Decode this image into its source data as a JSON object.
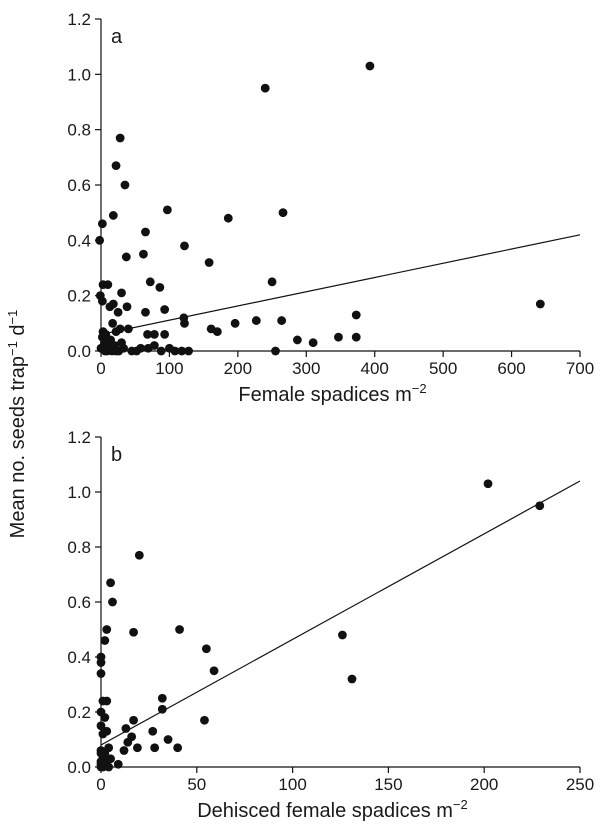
{
  "ylabel_shared": {
    "main": "Mean no. seeds trap",
    "sup1": "−1",
    "mid": " d",
    "sup2": "−1"
  },
  "chart_data": [
    {
      "type": "scatter",
      "panel_label": "a",
      "xlabel": {
        "main": "Female spadices m",
        "sup": "−2"
      },
      "xlim": [
        0,
        700
      ],
      "ylim": [
        0,
        1.2
      ],
      "x_ticks": [
        "0",
        "100",
        "200",
        "300",
        "400",
        "500",
        "600",
        "700"
      ],
      "y_ticks": [
        "0.0",
        "0.2",
        "0.4",
        "0.6",
        "0.8",
        "1.0",
        "1.2"
      ],
      "trendline": {
        "x": [
          0,
          700
        ],
        "y": [
          0.06,
          0.42
        ]
      },
      "points": [
        {
          "x": 393,
          "y": 1.03
        },
        {
          "x": 240,
          "y": 0.95
        },
        {
          "x": 28,
          "y": 0.77
        },
        {
          "x": 22,
          "y": 0.67
        },
        {
          "x": 35,
          "y": 0.6
        },
        {
          "x": 97,
          "y": 0.51
        },
        {
          "x": 266,
          "y": 0.5
        },
        {
          "x": 18,
          "y": 0.49
        },
        {
          "x": 186,
          "y": 0.48
        },
        {
          "x": 2,
          "y": 0.46
        },
        {
          "x": 65,
          "y": 0.43
        },
        {
          "x": -2,
          "y": 0.4
        },
        {
          "x": 122,
          "y": 0.38
        },
        {
          "x": 62,
          "y": 0.35
        },
        {
          "x": 37,
          "y": 0.34
        },
        {
          "x": 158,
          "y": 0.32
        },
        {
          "x": 72,
          "y": 0.25
        },
        {
          "x": 250,
          "y": 0.25
        },
        {
          "x": 3,
          "y": 0.24
        },
        {
          "x": 10,
          "y": 0.24
        },
        {
          "x": 86,
          "y": 0.23
        },
        {
          "x": 30,
          "y": 0.21
        },
        {
          "x": -1,
          "y": 0.2
        },
        {
          "x": 2,
          "y": 0.18
        },
        {
          "x": 18,
          "y": 0.17
        },
        {
          "x": 38,
          "y": 0.16
        },
        {
          "x": 13,
          "y": 0.16
        },
        {
          "x": 642,
          "y": 0.17
        },
        {
          "x": 93,
          "y": 0.15
        },
        {
          "x": 65,
          "y": 0.14
        },
        {
          "x": 25,
          "y": 0.14
        },
        {
          "x": 373,
          "y": 0.13
        },
        {
          "x": 121,
          "y": 0.12
        },
        {
          "x": 227,
          "y": 0.11
        },
        {
          "x": 264,
          "y": 0.11
        },
        {
          "x": 122,
          "y": 0.1
        },
        {
          "x": 196,
          "y": 0.1
        },
        {
          "x": 17,
          "y": 0.1
        },
        {
          "x": 161,
          "y": 0.08
        },
        {
          "x": 170,
          "y": 0.07
        },
        {
          "x": 22,
          "y": 0.07
        },
        {
          "x": 3,
          "y": 0.07
        },
        {
          "x": 28,
          "y": 0.08
        },
        {
          "x": 40,
          "y": 0.08
        },
        {
          "x": 7,
          "y": 0.06
        },
        {
          "x": 2,
          "y": 0.05
        },
        {
          "x": 68,
          "y": 0.06
        },
        {
          "x": 78,
          "y": 0.06
        },
        {
          "x": 93,
          "y": 0.06
        },
        {
          "x": 347,
          "y": 0.05
        },
        {
          "x": 373,
          "y": 0.05
        },
        {
          "x": 287,
          "y": 0.04
        },
        {
          "x": 310,
          "y": 0.03
        },
        {
          "x": 14,
          "y": 0.04
        },
        {
          "x": 30,
          "y": 0.03
        },
        {
          "x": 5,
          "y": 0.03
        },
        {
          "x": 11,
          "y": 0.02
        },
        {
          "x": 0,
          "y": 0.01
        },
        {
          "x": 6,
          "y": 0.0
        },
        {
          "x": 14,
          "y": 0.01
        },
        {
          "x": 20,
          "y": 0.02
        },
        {
          "x": 26,
          "y": 0.0
        },
        {
          "x": 33,
          "y": 0.01
        },
        {
          "x": 45,
          "y": 0.0
        },
        {
          "x": 52,
          "y": 0.0
        },
        {
          "x": 58,
          "y": 0.01
        },
        {
          "x": 69,
          "y": 0.01
        },
        {
          "x": 78,
          "y": 0.02
        },
        {
          "x": 88,
          "y": 0.0
        },
        {
          "x": 100,
          "y": 0.01
        },
        {
          "x": 108,
          "y": 0.0
        },
        {
          "x": 118,
          "y": 0.0
        },
        {
          "x": 128,
          "y": 0.0
        },
        {
          "x": 255,
          "y": 0.0
        },
        {
          "x": 3,
          "y": 0.01
        },
        {
          "x": 9,
          "y": 0.0
        },
        {
          "x": 16,
          "y": 0.0
        },
        {
          "x": 22,
          "y": 0.0
        }
      ]
    },
    {
      "type": "scatter",
      "panel_label": "b",
      "xlabel": {
        "main": "Dehisced female spadices m",
        "sup": "−2"
      },
      "xlim": [
        0,
        250
      ],
      "ylim": [
        0,
        1.2
      ],
      "x_ticks": [
        "0",
        "50",
        "100",
        "150",
        "200",
        "250"
      ],
      "y_ticks": [
        "0.0",
        "0.2",
        "0.4",
        "0.6",
        "0.8",
        "1.0",
        "1.2"
      ],
      "trendline": {
        "x": [
          0,
          250
        ],
        "y": [
          0.08,
          1.04
        ]
      },
      "points": [
        {
          "x": 202,
          "y": 1.03
        },
        {
          "x": 229,
          "y": 0.95
        },
        {
          "x": 20,
          "y": 0.77
        },
        {
          "x": 5,
          "y": 0.67
        },
        {
          "x": 6,
          "y": 0.6
        },
        {
          "x": 3,
          "y": 0.5
        },
        {
          "x": 41,
          "y": 0.5
        },
        {
          "x": 17,
          "y": 0.49
        },
        {
          "x": 126,
          "y": 0.48
        },
        {
          "x": 2,
          "y": 0.46
        },
        {
          "x": 55,
          "y": 0.43
        },
        {
          "x": 0,
          "y": 0.4
        },
        {
          "x": 0,
          "y": 0.38
        },
        {
          "x": 0,
          "y": 0.34
        },
        {
          "x": 59,
          "y": 0.35
        },
        {
          "x": 131,
          "y": 0.32
        },
        {
          "x": 32,
          "y": 0.25
        },
        {
          "x": 1,
          "y": 0.24
        },
        {
          "x": 3,
          "y": 0.24
        },
        {
          "x": 32,
          "y": 0.21
        },
        {
          "x": 0,
          "y": 0.2
        },
        {
          "x": 2,
          "y": 0.18
        },
        {
          "x": 17,
          "y": 0.17
        },
        {
          "x": 54,
          "y": 0.17
        },
        {
          "x": 0,
          "y": 0.15
        },
        {
          "x": 13,
          "y": 0.14
        },
        {
          "x": 3,
          "y": 0.13
        },
        {
          "x": 27,
          "y": 0.13
        },
        {
          "x": 35,
          "y": 0.1
        },
        {
          "x": 1,
          "y": 0.12
        },
        {
          "x": 16,
          "y": 0.11
        },
        {
          "x": 14,
          "y": 0.09
        },
        {
          "x": 19,
          "y": 0.07
        },
        {
          "x": 40,
          "y": 0.07
        },
        {
          "x": 4,
          "y": 0.07
        },
        {
          "x": 12,
          "y": 0.06
        },
        {
          "x": 28,
          "y": 0.07
        },
        {
          "x": 0,
          "y": 0.06
        },
        {
          "x": 2,
          "y": 0.05
        },
        {
          "x": 0,
          "y": 0.05
        },
        {
          "x": 1,
          "y": 0.03
        },
        {
          "x": 5,
          "y": 0.03
        },
        {
          "x": 0,
          "y": 0.02
        },
        {
          "x": 2,
          "y": 0.01
        },
        {
          "x": 4,
          "y": 0.0
        },
        {
          "x": 9,
          "y": 0.01
        },
        {
          "x": 0,
          "y": 0.0
        },
        {
          "x": 1,
          "y": 0.0
        },
        {
          "x": 0,
          "y": 0.01
        },
        {
          "x": 3,
          "y": 0.02
        }
      ]
    }
  ]
}
